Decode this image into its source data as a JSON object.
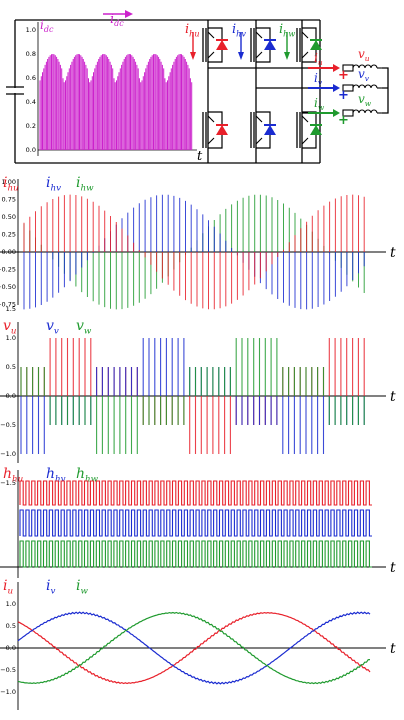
{
  "colors": {
    "red": "#e8202a",
    "blue": "#1a2bd0",
    "green": "#1f9a2e",
    "magenta": "#cc22cc",
    "black": "#000000"
  },
  "circuit": {
    "idc_label": "i",
    "idc_sub": "dc",
    "arrow_label_main": "i",
    "arrow_label_sub": "dc",
    "t_label": "t",
    "switch_labels": [
      {
        "main": "i",
        "sub": "hu",
        "color": "#e8202a"
      },
      {
        "main": "i",
        "sub": "hv",
        "color": "#1a2bd0"
      },
      {
        "main": "i",
        "sub": "hw",
        "color": "#1f9a2e"
      }
    ],
    "phase_current_labels": [
      {
        "main": "i",
        "sub": "u",
        "color": "#e8202a"
      },
      {
        "main": "i",
        "sub": "v",
        "color": "#1a2bd0"
      },
      {
        "main": "i",
        "sub": "w",
        "color": "#1f9a2e"
      }
    ],
    "phase_voltage_labels": [
      {
        "main": "v",
        "sub": "u",
        "color": "#e8202a"
      },
      {
        "main": "v",
        "sub": "v",
        "color": "#1a2bd0"
      },
      {
        "main": "v",
        "sub": "w",
        "color": "#1f9a2e"
      }
    ],
    "plus": "+",
    "inset_yticks": [
      "1.0",
      "0.8",
      "0.6",
      "0.4",
      "0.2",
      "0.0"
    ]
  },
  "panels": [
    {
      "id": "p1",
      "labels": [
        {
          "main": "i",
          "sub": "hu",
          "color": "#e8202a"
        },
        {
          "main": "i",
          "sub": "hv",
          "color": "#1a2bd0"
        },
        {
          "main": "i",
          "sub": "hw",
          "color": "#1f9a2e"
        }
      ],
      "yticks": [
        "1.00",
        "0.75",
        "0.50",
        "0.25",
        "0.00",
        "−0.25",
        "−0.50",
        "−0.75"
      ],
      "t": "t"
    },
    {
      "id": "p2",
      "labels": [
        {
          "main": "v",
          "sub": "u",
          "color": "#e8202a"
        },
        {
          "main": "v",
          "sub": "v",
          "color": "#1a2bd0"
        },
        {
          "main": "v",
          "sub": "w",
          "color": "#1f9a2e"
        }
      ],
      "yticks": [
        "1.5",
        "1.0",
        "0.5",
        "0.0",
        "−0.5",
        "−1.0",
        "−1.5"
      ],
      "t": "t"
    },
    {
      "id": "p3",
      "labels": [
        {
          "main": "h",
          "sub": "hu",
          "color": "#e8202a"
        },
        {
          "main": "h",
          "sub": "hv",
          "color": "#1a2bd0"
        },
        {
          "main": "h",
          "sub": "hw",
          "color": "#1f9a2e"
        }
      ],
      "yticks": [],
      "t": "t"
    },
    {
      "id": "p4",
      "labels": [
        {
          "main": "i",
          "sub": "u",
          "color": "#e8202a"
        },
        {
          "main": "i",
          "sub": "v",
          "color": "#1a2bd0"
        },
        {
          "main": "i",
          "sub": "w",
          "color": "#1f9a2e"
        }
      ],
      "yticks": [
        "1.0",
        "0.5",
        "0.0",
        "−0.5",
        "−1.0"
      ],
      "t": "t"
    }
  ]
}
